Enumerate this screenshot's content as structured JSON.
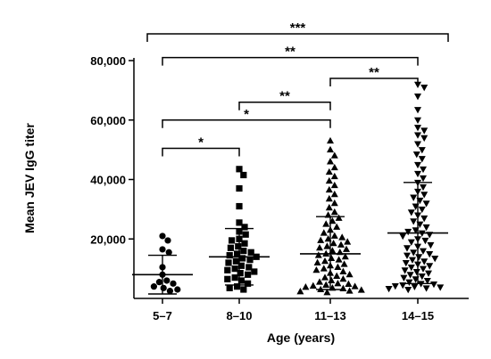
{
  "chart_data": {
    "type": "scatter",
    "xlabel": "Age (years)",
    "ylabel": "Mean JEV IgG titer",
    "ylim": [
      0,
      80000
    ],
    "yticks": [
      20000,
      40000,
      60000,
      80000
    ],
    "ytick_labels": [
      "20,000",
      "40,000",
      "60,000",
      "80,000"
    ],
    "categories": [
      "5–7",
      "8–10",
      "11–13",
      "14–15"
    ],
    "groups": [
      {
        "category": "5–7",
        "marker": "circle",
        "mean": 8000,
        "sd_low": 1500,
        "sd_high": 14500,
        "values": [
          21000,
          19500,
          16500,
          15500,
          10500,
          8000,
          6000,
          5500,
          5000,
          4000,
          3500,
          3000,
          2500
        ]
      },
      {
        "category": "8–10",
        "marker": "square",
        "mean": 14000,
        "sd_low": 4500,
        "sd_high": 23500,
        "values": [
          43500,
          41500,
          37000,
          31000,
          25500,
          24000,
          22500,
          21500,
          20000,
          19500,
          18500,
          17500,
          17000,
          16000,
          15500,
          15000,
          14500,
          14000,
          13500,
          13000,
          12500,
          12000,
          11000,
          10500,
          10000,
          9500,
          9000,
          8500,
          8000,
          7000,
          6500,
          6000,
          5000,
          4000,
          3500,
          3000
        ]
      },
      {
        "category": "11–13",
        "marker": "triangle-up",
        "mean": 15000,
        "sd_low": 3000,
        "sd_high": 27500,
        "values": [
          53000,
          50000,
          48000,
          46000,
          44000,
          42500,
          41000,
          39500,
          38000,
          36500,
          35000,
          33500,
          32000,
          30500,
          29000,
          28000,
          27000,
          26000,
          25000,
          24000,
          23000,
          22000,
          21000,
          20500,
          20000,
          19500,
          19000,
          18500,
          18000,
          17500,
          17000,
          16500,
          16000,
          15500,
          15000,
          14500,
          14000,
          13500,
          13000,
          12500,
          12000,
          11500,
          11000,
          10500,
          10000,
          9500,
          9000,
          8500,
          8000,
          7500,
          7000,
          6500,
          6000,
          5500,
          5000,
          4800,
          4500,
          4200,
          4000,
          3800,
          3500,
          3300,
          3000,
          2800,
          2500,
          2300,
          2000
        ]
      },
      {
        "category": "14–15",
        "marker": "triangle-down",
        "mean": 22000,
        "sd_low": 5000,
        "sd_high": 39000,
        "values": [
          72000,
          71000,
          68000,
          63500,
          60000,
          57500,
          56500,
          55000,
          54000,
          52000,
          50000,
          48500,
          47000,
          45000,
          43500,
          42000,
          40500,
          39000,
          37500,
          36000,
          35000,
          34000,
          33000,
          32000,
          31000,
          30000,
          29000,
          28000,
          27000,
          26000,
          25000,
          24000,
          23000,
          22500,
          22000,
          21500,
          21000,
          20000,
          19500,
          19000,
          18000,
          17500,
          17000,
          16000,
          15500,
          15000,
          14500,
          14000,
          13500,
          13000,
          12500,
          12000,
          11500,
          11000,
          10500,
          10000,
          9500,
          9000,
          8500,
          8000,
          7500,
          7000,
          6500,
          6000,
          5500,
          5000,
          4800,
          4500,
          4200,
          4000,
          3800,
          3500,
          3300,
          3000
        ]
      }
    ],
    "significance": [
      {
        "from": 0,
        "to": 3,
        "label": "***",
        "y": 89000
      },
      {
        "from": 0,
        "to": 3,
        "label": "**",
        "y": 81000
      },
      {
        "from": 2,
        "to": 3,
        "label": "**",
        "y": 74000
      },
      {
        "from": 1,
        "to": 2,
        "label": "**",
        "y": 66000
      },
      {
        "from": 0,
        "to": 2,
        "label": "*",
        "y": 60000
      },
      {
        "from": 0,
        "to": 1,
        "label": "*",
        "y": 50500
      }
    ],
    "grid": false,
    "legend": "none"
  }
}
